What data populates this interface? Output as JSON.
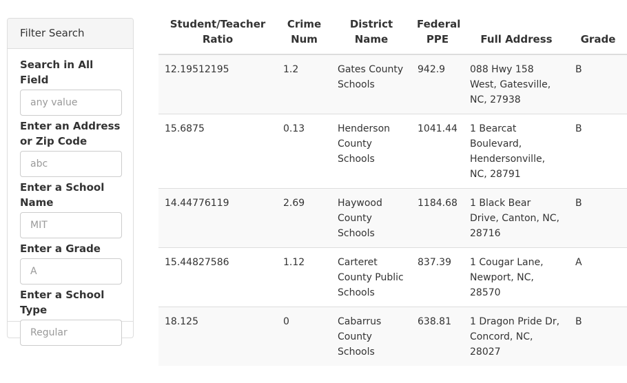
{
  "filter": {
    "title": "Filter Search",
    "fields": [
      {
        "label": "Search in All Field",
        "placeholder": "any value"
      },
      {
        "label": "Enter an Address or Zip Code",
        "placeholder": "abc"
      },
      {
        "label": "Enter a School Name",
        "placeholder": "MIT"
      },
      {
        "label": "Enter a Grade",
        "placeholder": "A"
      },
      {
        "label": "Enter a School Type",
        "placeholder": "Regular"
      }
    ]
  },
  "table": {
    "columns": [
      "Student/Teacher Ratio",
      "Crime Num",
      "District Name",
      "Federal PPE",
      "Full Address",
      "Grade"
    ],
    "rows": [
      [
        "12.19512195",
        "1.2",
        "Gates County Schools",
        "942.9",
        "088 Hwy 158 West, Gatesville, NC, 27938",
        "B"
      ],
      [
        "15.6875",
        "0.13",
        "Henderson County Schools",
        "1041.44",
        "1 Bearcat Boulevard, Hendersonville, NC, 28791",
        "B"
      ],
      [
        "14.44776119",
        "2.69",
        "Haywood County Schools",
        "1184.68",
        "1 Black Bear Drive, Canton, NC, 28716",
        "B"
      ],
      [
        "15.44827586",
        "1.12",
        "Carteret County Public Schools",
        "837.39",
        "1 Cougar Lane, Newport, NC, 28570",
        "A"
      ],
      [
        "18.125",
        "0",
        "Cabarrus County Schools",
        "638.81",
        "1 Dragon Pride Dr, Concord, NC, 28027",
        "B"
      ]
    ]
  }
}
